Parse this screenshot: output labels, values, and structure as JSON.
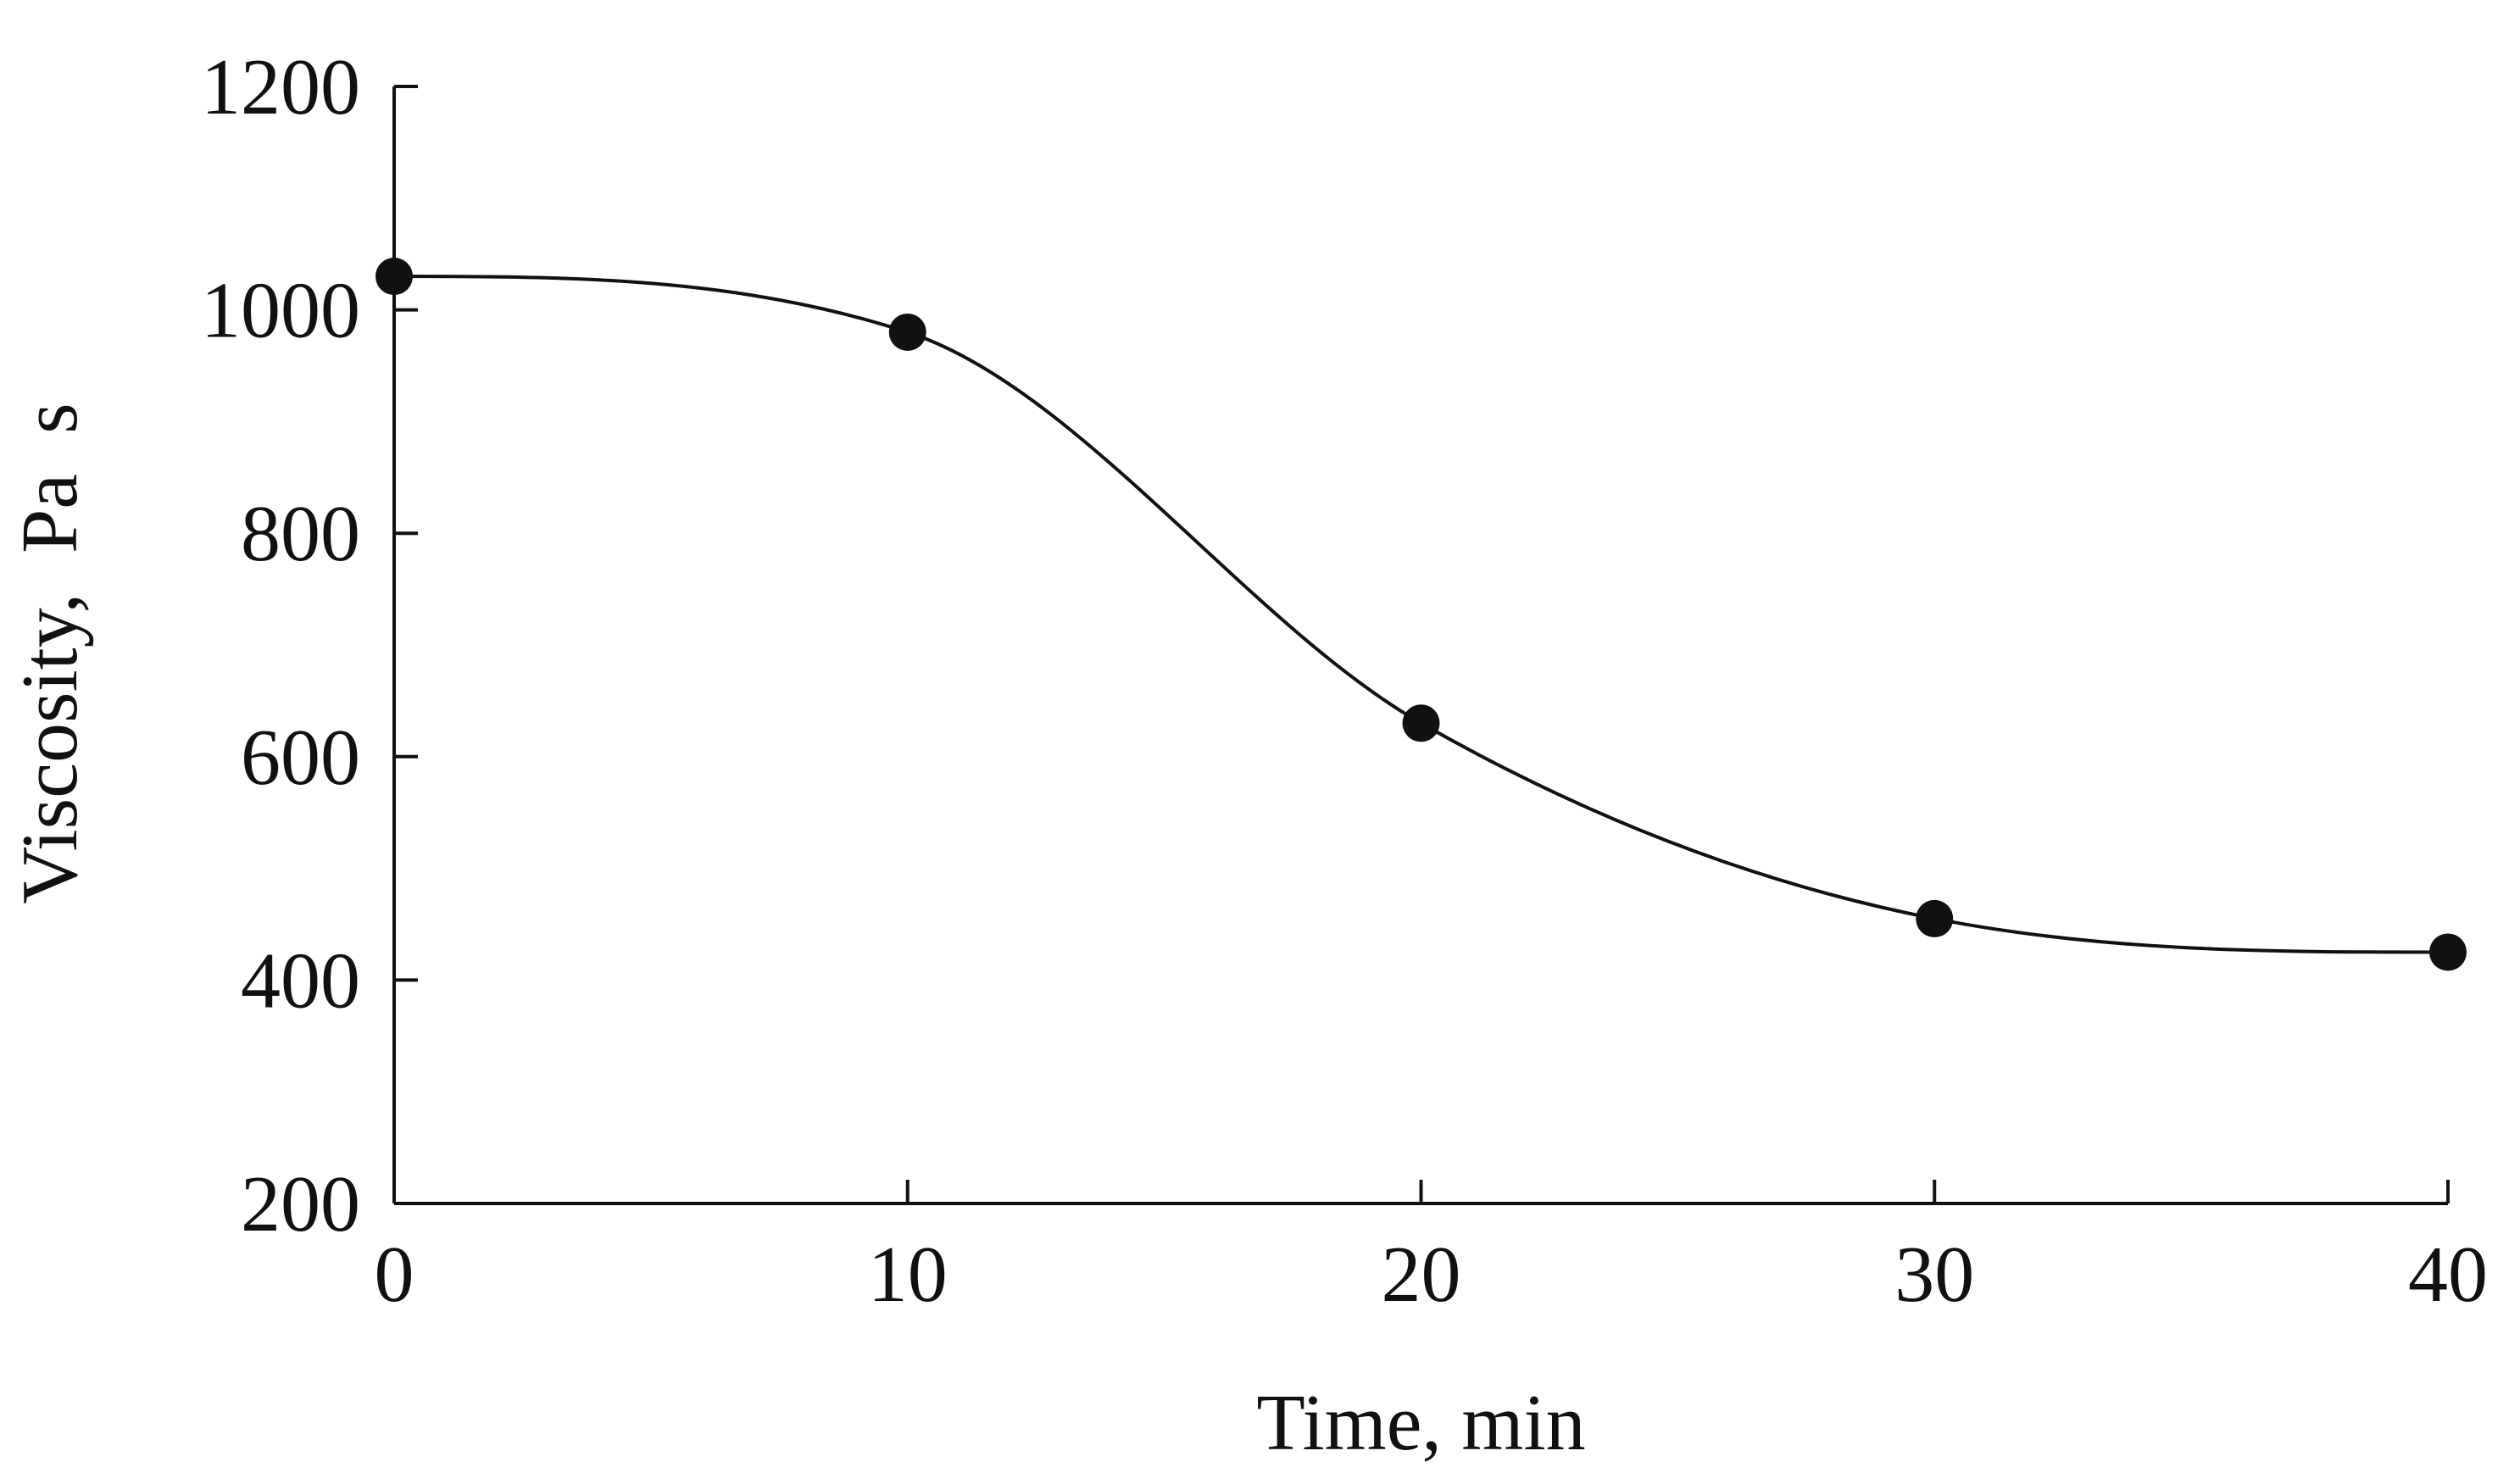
{
  "chart_data": {
    "type": "line",
    "title": "",
    "xlabel": "Time, min",
    "ylabel": "Viscosity,  Pa  s",
    "xlim": [
      0,
      40
    ],
    "ylim": [
      200,
      1200
    ],
    "x_ticks": [
      0,
      10,
      20,
      30,
      40
    ],
    "y_ticks": [
      200,
      400,
      600,
      800,
      1000,
      1200
    ],
    "grid": false,
    "legend": "none",
    "series": [
      {
        "x": [
          0,
          10,
          20,
          30,
          40
        ],
        "values": [
          1030,
          980,
          630,
          455,
          425
        ],
        "marker": "filled-circle",
        "line": "smooth",
        "color": "#111111"
      }
    ]
  }
}
